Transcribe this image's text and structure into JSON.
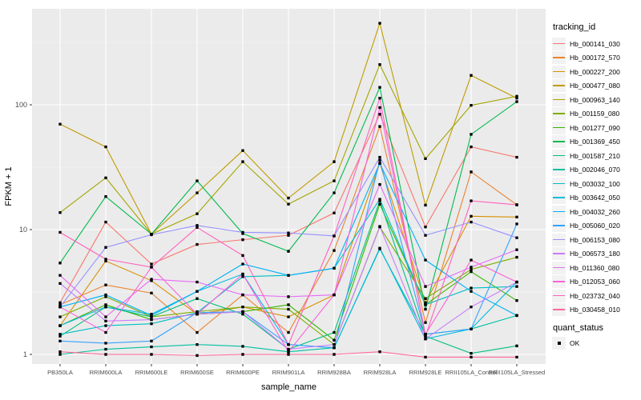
{
  "chart_data": {
    "type": "line",
    "title": "",
    "xlabel": "sample_name",
    "ylabel": "FPKM + 1",
    "y_scale": "log10",
    "y_ticks": [
      "1",
      "10",
      "100"
    ],
    "y_tick_values": [
      1,
      10,
      100
    ],
    "ylim": [
      0.84,
      570
    ],
    "grid": true,
    "legend_position": "right",
    "legend_title": "tracking_id",
    "point_legend": {
      "title": "quant_status",
      "label": "OK",
      "marker": "black-square"
    },
    "categories": [
      "PB350LA",
      "RRIM600LA",
      "RRIM600LE",
      "RRIM600SE",
      "RRIM600PE",
      "RRIM901LA",
      "RRIM928BA",
      "RRIM928LA",
      "RRIM928LE",
      "RRII105LA_Control",
      "RRII105LA_Stressed"
    ],
    "series": [
      {
        "name": "Hb_000141_030",
        "color": "#F8766D",
        "values": [
          2.6,
          11.5,
          5.3,
          7.6,
          8.3,
          9.0,
          13.6,
          84,
          10.5,
          46,
          38
        ]
      },
      {
        "name": "Hb_000172_570",
        "color": "#EA8331",
        "values": [
          2.5,
          3.6,
          3.1,
          1.5,
          3.0,
          1.5,
          6.8,
          67,
          1.8,
          29,
          15.8
        ]
      },
      {
        "name": "Hb_000227_200",
        "color": "#D89000",
        "values": [
          1.7,
          5.6,
          3.9,
          2.1,
          2.4,
          2.0,
          3.0,
          34,
          2.6,
          12.8,
          12.6
        ]
      },
      {
        "name": "Hb_000477_080",
        "color": "#C09B00",
        "values": [
          70,
          46,
          9.2,
          19.7,
          43,
          17.9,
          35,
          450,
          15.7,
          172,
          113
        ]
      },
      {
        "name": "Hb_000963_140",
        "color": "#A3A500",
        "values": [
          13.7,
          26,
          9.2,
          13.4,
          35,
          16,
          24.6,
          210,
          37,
          99,
          117
        ]
      },
      {
        "name": "Hb_001159_080",
        "color": "#7CAE00",
        "values": [
          2.0,
          2.9,
          2.0,
          2.2,
          2.4,
          2.3,
          1.2,
          10.5,
          2.8,
          4.8,
          6.0
        ]
      },
      {
        "name": "Hb_001277_090",
        "color": "#39B600",
        "values": [
          1.7,
          2.5,
          1.9,
          2.1,
          2.2,
          2.5,
          1.3,
          16,
          2.5,
          4.6,
          2.7
        ]
      },
      {
        "name": "Hb_001369_450",
        "color": "#00BB4E",
        "values": [
          5.4,
          18.4,
          9.2,
          24.6,
          9.3,
          6.7,
          19.7,
          138,
          2.3,
          58,
          106
        ]
      },
      {
        "name": "Hb_001587_210",
        "color": "#00BF7D",
        "values": [
          1.4,
          2.4,
          2.0,
          2.8,
          2.1,
          1.1,
          1.5,
          17,
          1.4,
          1.02,
          1.17
        ]
      },
      {
        "name": "Hb_002046_070",
        "color": "#00C1A3",
        "values": [
          1.0,
          1.1,
          1.15,
          1.2,
          1.16,
          1.05,
          1.13,
          7.0,
          1.45,
          1.6,
          2.05
        ]
      },
      {
        "name": "Hb_003032_100",
        "color": "#00BFC4",
        "values": [
          1.45,
          1.7,
          1.76,
          2.16,
          4.2,
          4.3,
          4.9,
          17.5,
          2.5,
          3.4,
          3.5
        ]
      },
      {
        "name": "Hb_003642_050",
        "color": "#00BAE0",
        "values": [
          1.7,
          2.4,
          2.1,
          3.2,
          4.4,
          1.2,
          1.13,
          7.1,
          1.33,
          1.6,
          3.8
        ]
      },
      {
        "name": "Hb_004032_260",
        "color": "#00B0F6",
        "values": [
          2.4,
          3.0,
          2.05,
          3.2,
          5.3,
          4.3,
          4.9,
          34,
          5.7,
          3.2,
          2.05
        ]
      },
      {
        "name": "Hb_005060_020",
        "color": "#35A2FF",
        "values": [
          1.28,
          1.23,
          1.28,
          2.16,
          2.2,
          1.2,
          1.13,
          36,
          1.45,
          1.6,
          11.1
        ]
      },
      {
        "name": "Hb_006153_080",
        "color": "#9590FF",
        "values": [
          2.4,
          7.2,
          9.1,
          10.8,
          9.5,
          9.4,
          8.9,
          38,
          9.0,
          11.5,
          8.6
        ]
      },
      {
        "name": "Hb_006573_180",
        "color": "#C77CFF",
        "values": [
          3.7,
          1.85,
          1.9,
          2.1,
          2.2,
          1.1,
          1.2,
          10.6,
          1.33,
          2.4,
          3.8
        ]
      },
      {
        "name": "Hb_011360_080",
        "color": "#E76BF3",
        "values": [
          4.3,
          2.0,
          4.0,
          3.8,
          3.0,
          2.9,
          3.0,
          23,
          3.5,
          5.0,
          6.9
        ]
      },
      {
        "name": "Hb_012053_060",
        "color": "#FA62DB",
        "values": [
          2.4,
          1.5,
          5.0,
          2.1,
          4.4,
          1.05,
          3.0,
          95,
          1.45,
          5.7,
          3.8
        ]
      },
      {
        "name": "Hb_023732_040",
        "color": "#FF62BC",
        "values": [
          9.5,
          5.8,
          5.0,
          10.4,
          6.2,
          1.2,
          8.9,
          113,
          1.4,
          17,
          15.8
        ]
      },
      {
        "name": "Hb_030458_010",
        "color": "#FF6A98",
        "values": [
          1.05,
          1.0,
          1.0,
          0.98,
          1.0,
          1.0,
          1.0,
          1.05,
          0.95,
          0.95,
          0.95
        ]
      }
    ],
    "style": {
      "panel_bg": "#EBEBEB",
      "grid_major": "#FFFFFF",
      "grid_minor": "#F7F7F7",
      "legend_key_bg": "#F2F2F2",
      "tick_label_color": "#4D4D4D",
      "point_color": "#000000",
      "background": "#FFFFFF"
    }
  }
}
